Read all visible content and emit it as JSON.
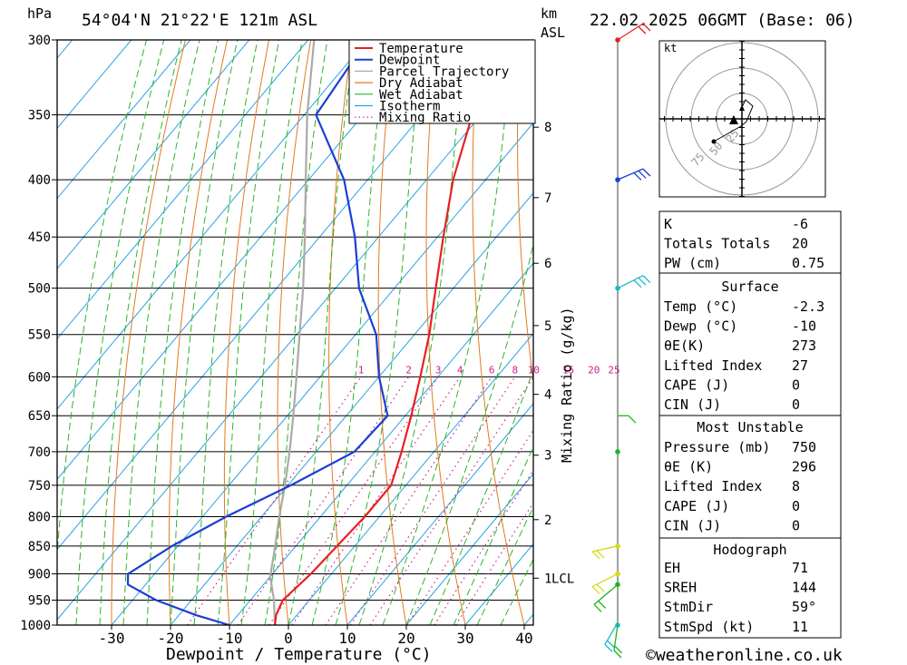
{
  "header": {
    "location": "54°04'N 21°22'E 121m ASL",
    "datetime": "22.02.2025 06GMT (Base: 06)",
    "pressure_unit": "hPa",
    "height_unit": "km",
    "height_ref": "ASL"
  },
  "chart_data": {
    "type": "skew-t",
    "xlabel": "Dewpoint / Temperature (°C)",
    "ylabel_right": "Mixing Ratio (g/kg)",
    "x_ticks": [
      -30,
      -20,
      -10,
      0,
      10,
      20,
      30,
      40
    ],
    "xlim": [
      -40,
      40
    ],
    "pressure_levels": [
      300,
      350,
      400,
      450,
      500,
      550,
      600,
      650,
      700,
      750,
      800,
      850,
      900,
      950,
      1000
    ],
    "plim": [
      300,
      1000
    ],
    "log_pressure": true,
    "km_ticks": [
      {
        "label": "8",
        "p": 359
      },
      {
        "label": "7",
        "p": 415
      },
      {
        "label": "6",
        "p": 475
      },
      {
        "label": "5",
        "p": 540
      },
      {
        "label": "4",
        "p": 622
      },
      {
        "label": "3",
        "p": 705
      },
      {
        "label": "2",
        "p": 805
      },
      {
        "label": "1",
        "p": 908
      }
    ],
    "lcl_label": "LCL",
    "lcl_p": 905,
    "mixing_ratio_labels": [
      "1",
      "2",
      "3",
      "4",
      "6",
      "8",
      "10",
      "15",
      "20",
      "25"
    ],
    "mixing_ratio_values": [
      1,
      2,
      3,
      4,
      6,
      8,
      10,
      15,
      20,
      25
    ],
    "legend": [
      "Temperature",
      "Dewpoint",
      "Parcel Trajectory",
      "Dry Adiabat",
      "Wet Adiabat",
      "Isotherm",
      "Mixing Ratio"
    ],
    "legend_position": "top",
    "colors": {
      "temperature": "#e82020",
      "dewpoint": "#1a3fd6",
      "parcel": "#aaaaaa",
      "dry_adiabat": "#e07a1f",
      "wet_adiabat": "#2bb52b",
      "isotherm": "#29a3e0",
      "mixing_ratio": "#d0208a"
    },
    "temperature": [
      {
        "p": 300,
        "t": -49
      },
      {
        "p": 350,
        "t": -41.5
      },
      {
        "p": 400,
        "t": -35.5
      },
      {
        "p": 450,
        "t": -29
      },
      {
        "p": 500,
        "t": -23
      },
      {
        "p": 550,
        "t": -17.5
      },
      {
        "p": 600,
        "t": -13
      },
      {
        "p": 650,
        "t": -9
      },
      {
        "p": 700,
        "t": -5.5
      },
      {
        "p": 750,
        "t": -2.5
      },
      {
        "p": 800,
        "t": -2.5
      },
      {
        "p": 850,
        "t": -3
      },
      {
        "p": 900,
        "t": -3.5
      },
      {
        "p": 950,
        "t": -4.5
      },
      {
        "p": 980,
        "t": -3.5
      },
      {
        "p": 1000,
        "t": -2.3
      }
    ],
    "dewpoint": [
      {
        "p": 300,
        "t": -70
      },
      {
        "p": 350,
        "t": -68
      },
      {
        "p": 400,
        "t": -54
      },
      {
        "p": 450,
        "t": -44
      },
      {
        "p": 500,
        "t": -36
      },
      {
        "p": 550,
        "t": -26.5
      },
      {
        "p": 600,
        "t": -20
      },
      {
        "p": 650,
        "t": -13
      },
      {
        "p": 700,
        "t": -13.5
      },
      {
        "p": 750,
        "t": -19.5
      },
      {
        "p": 800,
        "t": -26
      },
      {
        "p": 850,
        "t": -31
      },
      {
        "p": 900,
        "t": -34.5
      },
      {
        "p": 920,
        "t": -33
      },
      {
        "p": 950,
        "t": -26
      },
      {
        "p": 980,
        "t": -17
      },
      {
        "p": 1000,
        "t": -10
      }
    ],
    "parcel": [
      {
        "p": 1000,
        "t": -2.3
      },
      {
        "p": 950,
        "t": -6
      },
      {
        "p": 905,
        "t": -10
      },
      {
        "p": 850,
        "t": -13.5
      },
      {
        "p": 800,
        "t": -17
      },
      {
        "p": 750,
        "t": -20.5
      },
      {
        "p": 700,
        "t": -24.5
      },
      {
        "p": 650,
        "t": -29
      },
      {
        "p": 600,
        "t": -34
      },
      {
        "p": 550,
        "t": -39.5
      },
      {
        "p": 500,
        "t": -45.5
      },
      {
        "p": 450,
        "t": -52.5
      },
      {
        "p": 400,
        "t": -60.5
      },
      {
        "p": 350,
        "t": -69.5
      },
      {
        "p": 300,
        "t": -79
      }
    ]
  },
  "hodograph": {
    "unit": "kt",
    "ring_labels": [
      "25",
      "50",
      "75"
    ]
  },
  "indices": {
    "general": [
      {
        "label": "K",
        "value": "-6"
      },
      {
        "label": "Totals Totals",
        "value": "20"
      },
      {
        "label": "PW (cm)",
        "value": "0.75"
      }
    ],
    "surface_title": "Surface",
    "surface": [
      {
        "label": "Temp (°C)",
        "value": "-2.3"
      },
      {
        "label": "Dewp (°C)",
        "value": "-10"
      },
      {
        "label": "θE(K)",
        "value": "273"
      },
      {
        "label": "Lifted Index",
        "value": "27"
      },
      {
        "label": "CAPE (J)",
        "value": "0"
      },
      {
        "label": "CIN (J)",
        "value": "0"
      }
    ],
    "unstable_title": "Most Unstable",
    "unstable": [
      {
        "label": "Pressure (mb)",
        "value": "750"
      },
      {
        "label": "θE (K)",
        "value": "296"
      },
      {
        "label": "Lifted Index",
        "value": "8"
      },
      {
        "label": "CAPE (J)",
        "value": "0"
      },
      {
        "label": "CIN (J)",
        "value": "0"
      }
    ],
    "hodo_title": "Hodograph",
    "hodo": [
      {
        "label": "EH",
        "value": "71"
      },
      {
        "label": "SREH",
        "value": "144"
      },
      {
        "label": "StmDir",
        "value": "59°"
      },
      {
        "label": "StmSpd (kt)",
        "value": "11"
      }
    ]
  },
  "footer": {
    "copyright": "©weatheronline.co.uk"
  }
}
